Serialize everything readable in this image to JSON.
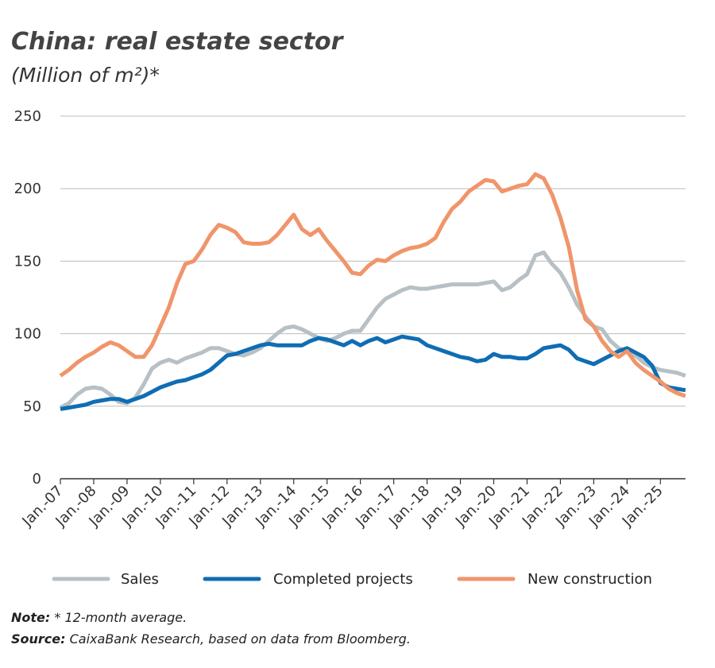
{
  "chart_data": {
    "type": "line",
    "title": "China: real estate sector",
    "subtitle": "(Million of m²)*",
    "categories": [
      "Jan.-07",
      null,
      null,
      null,
      "Jan.-08",
      null,
      null,
      null,
      "Jan.-09",
      null,
      null,
      null,
      "Jan.-10",
      null,
      null,
      null,
      "Jan.-11",
      null,
      null,
      null,
      "Jan.-12",
      null,
      null,
      null,
      "Jan.-13",
      null,
      null,
      null,
      "Jan.-14",
      null,
      null,
      null,
      "Jan.-15",
      null,
      null,
      null,
      "Jan.-16",
      null,
      null,
      null,
      "Jan.-17",
      null,
      null,
      null,
      "Jan.-18",
      null,
      null,
      null,
      "Jan.-19",
      null,
      null,
      null,
      "Jan.-20",
      null,
      null,
      null,
      "Jan.-21",
      null,
      null,
      null,
      "Jan.-22",
      null,
      null,
      null,
      "Jan.-23",
      null,
      null,
      null,
      "Jan.-24",
      null,
      null,
      null,
      "Jan.-25",
      null,
      null,
      null
    ],
    "series": [
      {
        "name": "Sales",
        "color": "#b7c0c4",
        "values": [
          49,
          52,
          58,
          62,
          63,
          62,
          58,
          53,
          52,
          56,
          65,
          76,
          80,
          82,
          80,
          83,
          85,
          87,
          90,
          90,
          88,
          86,
          85,
          87,
          90,
          95,
          100,
          104,
          105,
          103,
          100,
          97,
          95,
          97,
          100,
          102,
          102,
          110,
          118,
          124,
          127,
          130,
          132,
          131,
          131,
          132,
          133,
          134,
          134,
          134,
          134,
          135,
          136,
          130,
          132,
          137,
          141,
          154,
          156,
          148,
          142,
          132,
          120,
          112,
          105,
          103,
          95,
          90,
          88,
          85,
          80,
          77,
          75,
          74,
          73,
          71
        ]
      },
      {
        "name": "Completed projects",
        "color": "#0f6db3",
        "values": [
          48,
          49,
          50,
          51,
          53,
          54,
          55,
          55,
          53,
          55,
          57,
          60,
          63,
          65,
          67,
          68,
          70,
          72,
          75,
          80,
          85,
          86,
          88,
          90,
          92,
          93,
          92,
          92,
          92,
          92,
          95,
          97,
          96,
          94,
          92,
          95,
          92,
          95,
          97,
          94,
          96,
          98,
          97,
          96,
          92,
          90,
          88,
          86,
          84,
          83,
          81,
          82,
          86,
          84,
          84,
          83,
          83,
          86,
          90,
          91,
          92,
          89,
          83,
          81,
          79,
          82,
          85,
          88,
          90,
          87,
          84,
          78,
          66,
          63,
          62,
          61
        ]
      },
      {
        "name": "New construction",
        "color": "#f0956a",
        "values": [
          71,
          75,
          80,
          84,
          87,
          91,
          94,
          92,
          88,
          84,
          84,
          92,
          105,
          118,
          135,
          148,
          150,
          158,
          168,
          175,
          173,
          170,
          163,
          162,
          162,
          163,
          168,
          175,
          182,
          172,
          168,
          172,
          164,
          157,
          150,
          142,
          141,
          147,
          151,
          150,
          154,
          157,
          159,
          160,
          162,
          166,
          177,
          186,
          191,
          198,
          202,
          206,
          205,
          198,
          200,
          202,
          203,
          210,
          207,
          196,
          180,
          160,
          130,
          110,
          105,
          95,
          88,
          84,
          88,
          80,
          75,
          71,
          67,
          62,
          59,
          57
        ]
      }
    ],
    "ylim": [
      0,
      250
    ],
    "yticks": [
      0,
      50,
      100,
      150,
      200,
      250
    ],
    "grid": true,
    "note": {
      "label": "Note:",
      "text": " * 12-month average."
    },
    "source": {
      "label": "Source:",
      "text": " CaixaBank Research, based on data from Bloomberg."
    }
  }
}
